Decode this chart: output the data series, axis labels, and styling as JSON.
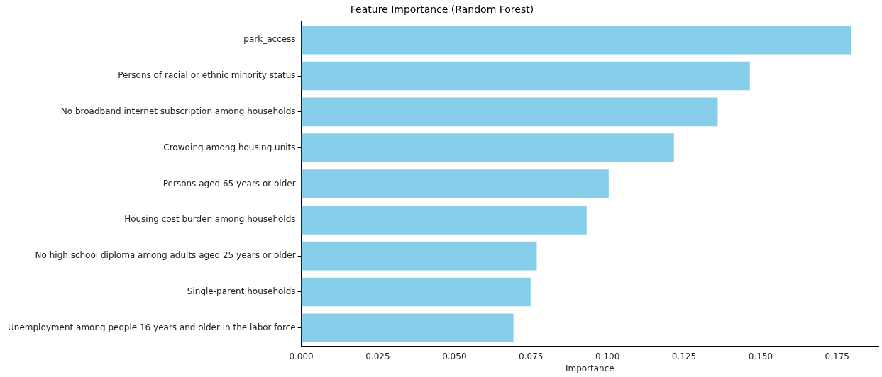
{
  "chart_data": {
    "type": "bar",
    "orientation": "horizontal",
    "title": "Feature Importance (Random Forest)",
    "xlabel": "Importance",
    "categories": [
      "park_access",
      "Persons of racial or ethnic minority status",
      "No broadband internet subscription among households",
      "Crowding among housing units",
      "Persons aged 65 years or older",
      "Housing cost burden among households",
      "No high school diploma among adults aged 25 years or older",
      "Single-parent households",
      "Unemployment among people 16 years and older in the labor force"
    ],
    "values": [
      0.1795,
      0.1465,
      0.136,
      0.1217,
      0.1004,
      0.0932,
      0.0769,
      0.0749,
      0.0693
    ],
    "color": "#87ceeb",
    "xlim": [
      0,
      0.1885
    ],
    "xticks": [
      {
        "value": 0,
        "label": "0.000"
      },
      0.025,
      {
        "value": 0.05,
        "label": "0.050"
      },
      0.075,
      {
        "value": 0.1,
        "label": "0.100"
      },
      0.125,
      {
        "value": 0.15,
        "label": "0.150"
      },
      0.175
    ],
    "grid": false,
    "legend": false
  }
}
